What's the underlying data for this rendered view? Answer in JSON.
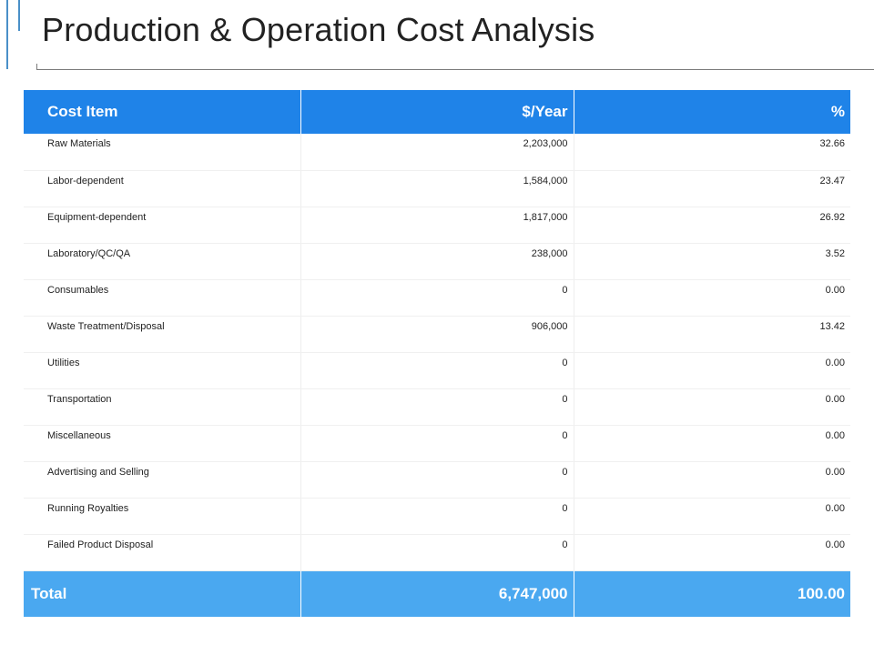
{
  "title": "Production & Operation Cost Analysis",
  "table": {
    "headers": [
      "Cost Item",
      "$/Year",
      "%"
    ],
    "rows": [
      {
        "item": "Raw Materials",
        "per_year": "2,203,000",
        "percent": "32.66"
      },
      {
        "item": "Labor-dependent",
        "per_year": "1,584,000",
        "percent": "23.47"
      },
      {
        "item": "Equipment-dependent",
        "per_year": "1,817,000",
        "percent": "26.92"
      },
      {
        "item": "Laboratory/QC/QA",
        "per_year": "238,000",
        "percent": "3.52"
      },
      {
        "item": "Consumables",
        "per_year": "0",
        "percent": "0.00"
      },
      {
        "item": "Waste Treatment/Disposal",
        "per_year": "906,000",
        "percent": "13.42"
      },
      {
        "item": "Utilities",
        "per_year": "0",
        "percent": "0.00"
      },
      {
        "item": "Transportation",
        "per_year": "0",
        "percent": "0.00"
      },
      {
        "item": "Miscellaneous",
        "per_year": "0",
        "percent": "0.00"
      },
      {
        "item": "Advertising and Selling",
        "per_year": "0",
        "percent": "0.00"
      },
      {
        "item": "Running Royalties",
        "per_year": "0",
        "percent": "0.00"
      },
      {
        "item": "Failed Product Disposal",
        "per_year": "0",
        "percent": "0.00"
      }
    ],
    "total": {
      "label": "Total",
      "per_year": "6,747,000",
      "percent": "100.00"
    }
  },
  "colors": {
    "header_bg": "#1f83e8",
    "total_bg": "#4aa8f0",
    "accent": "#4a90c8"
  }
}
